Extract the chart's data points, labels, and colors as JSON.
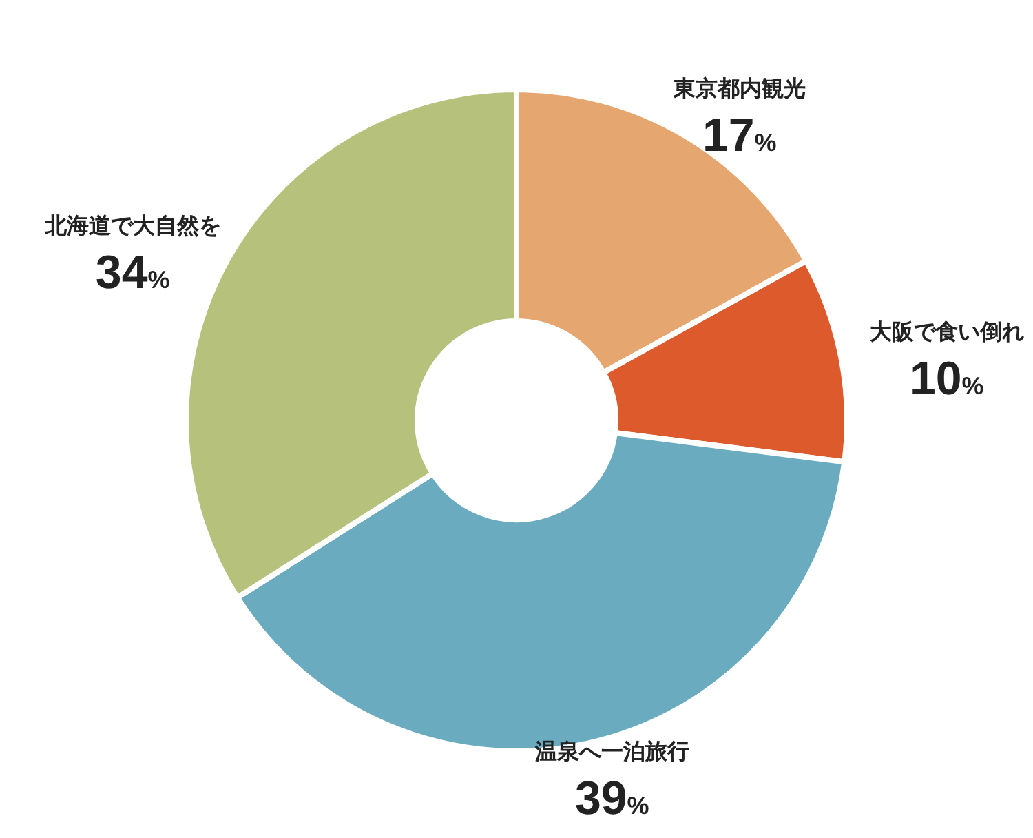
{
  "chart_data": {
    "type": "donut",
    "categories": [
      "東京都内観光",
      "大阪で食い倒れ",
      "温泉へ一泊旅行",
      "北海道で大自然を"
    ],
    "values": [
      17,
      10,
      39,
      34
    ],
    "value_labels": [
      "17%",
      "10%",
      "39%",
      "34%"
    ],
    "colors": [
      "#e5a66f",
      "#dd5a2c",
      "#6aabbf",
      "#b6c17c"
    ]
  }
}
